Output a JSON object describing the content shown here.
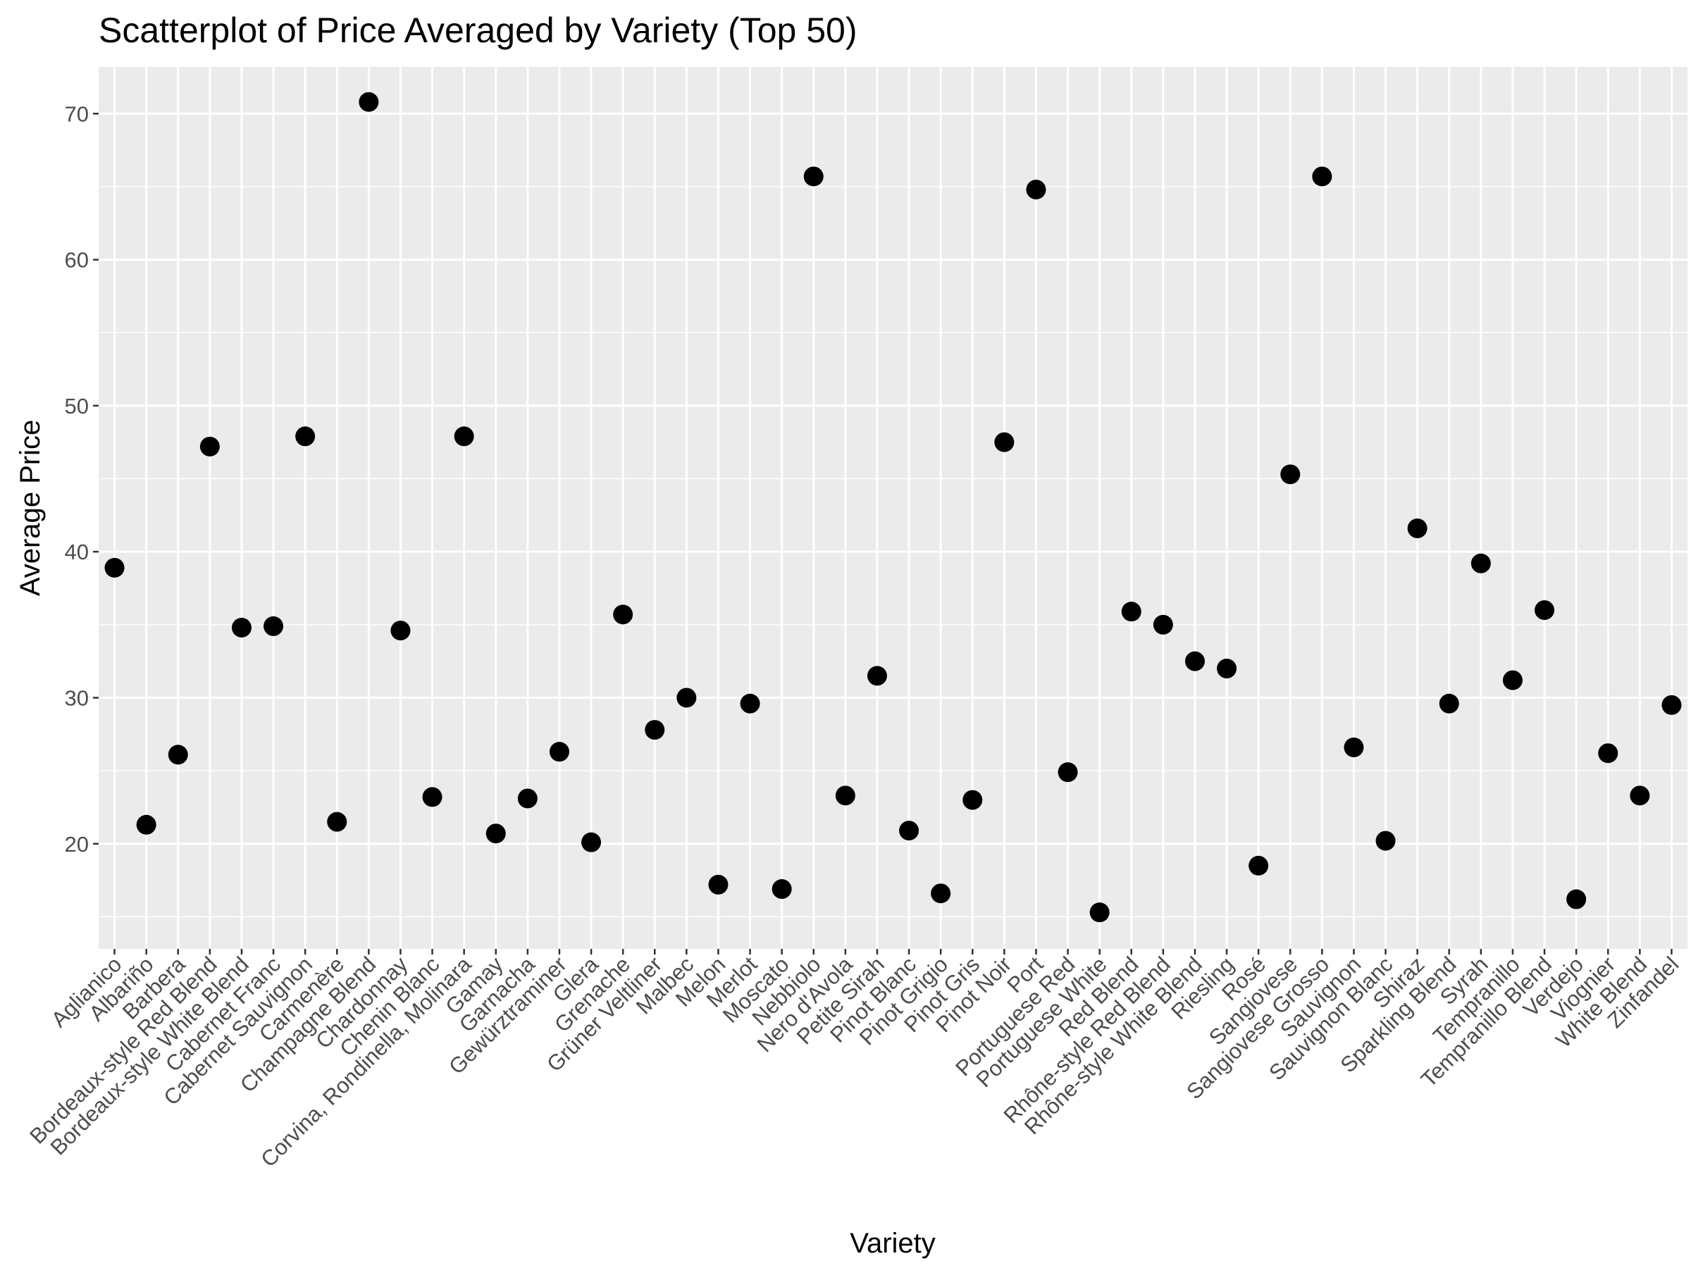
{
  "chart_data": {
    "type": "scatter",
    "title": "Scatterplot of Price Averaged by Variety (Top 50)",
    "xlabel": "Variety",
    "ylabel": "Average Price",
    "ylim": [
      12.8,
      73.2
    ],
    "yticks": [
      20,
      30,
      40,
      50,
      60,
      70
    ],
    "grid": true,
    "legend": "none",
    "colors": {
      "panel": "#ebebeb",
      "grid": "#ffffff",
      "point": "#000000",
      "tick": "#4d4d4d"
    },
    "categories": [
      "Aglianico",
      "Albariño",
      "Barbera",
      "Bordeaux-style Red Blend",
      "Bordeaux-style White Blend",
      "Cabernet Franc",
      "Cabernet Sauvignon",
      "Carmenère",
      "Champagne Blend",
      "Chardonnay",
      "Chenin Blanc",
      "Corvina, Rondinella, Molinara",
      "Gamay",
      "Garnacha",
      "Gewürztraminer",
      "Glera",
      "Grenache",
      "Grüner Veltliner",
      "Malbec",
      "Melon",
      "Merlot",
      "Moscato",
      "Nebbiolo",
      "Nero d'Avola",
      "Petite Sirah",
      "Pinot Blanc",
      "Pinot Grigio",
      "Pinot Gris",
      "Pinot Noir",
      "Port",
      "Portuguese Red",
      "Portuguese White",
      "Red Blend",
      "Rhône-style Red Blend",
      "Rhône-style White Blend",
      "Riesling",
      "Rosé",
      "Sangiovese",
      "Sangiovese Grosso",
      "Sauvignon",
      "Sauvignon Blanc",
      "Shiraz",
      "Sparkling Blend",
      "Syrah",
      "Tempranillo",
      "Tempranillo Blend",
      "Verdejo",
      "Viognier",
      "White Blend",
      "Zinfandel"
    ],
    "values": [
      38.9,
      21.3,
      26.1,
      47.2,
      34.8,
      34.9,
      47.9,
      21.5,
      70.8,
      34.6,
      23.2,
      47.9,
      20.7,
      23.1,
      26.3,
      20.1,
      35.7,
      27.8,
      30.0,
      17.2,
      29.6,
      16.9,
      65.7,
      23.3,
      31.5,
      20.9,
      16.6,
      23.0,
      47.5,
      64.8,
      24.9,
      15.3,
      35.9,
      35.0,
      32.5,
      32.0,
      18.5,
      45.3,
      65.7,
      26.6,
      20.2,
      41.6,
      29.6,
      39.2,
      31.2,
      36.0,
      16.2,
      26.2,
      23.3,
      29.5
    ]
  }
}
